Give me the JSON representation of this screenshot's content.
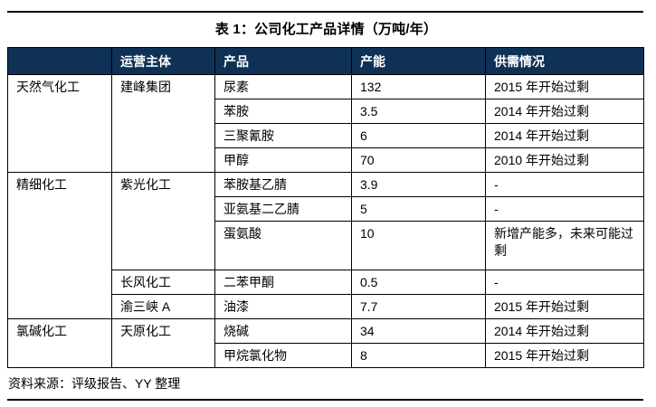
{
  "title": "表 1：公司化工产品详情（万吨/年）",
  "table": {
    "headers": [
      "",
      "运营主体",
      "产品",
      "产能",
      "供需情况"
    ],
    "rows": [
      {
        "category": {
          "text": "天然气化工",
          "rowspan": 4
        },
        "operator": {
          "text": "建峰集团",
          "rowspan": 4
        },
        "product": "尿素",
        "capacity": "132",
        "supply": "2015 年开始过剩"
      },
      {
        "product": "苯胺",
        "capacity": "3.5",
        "supply": "2014 年开始过剩"
      },
      {
        "product": "三聚氰胺",
        "capacity": "6",
        "supply": "2014 年开始过剩"
      },
      {
        "product": "甲醇",
        "capacity": "70",
        "supply": "2010 年开始过剩"
      },
      {
        "category": {
          "text": "精细化工",
          "rowspan": 5
        },
        "operator": {
          "text": "紫光化工",
          "rowspan": 3
        },
        "product": "苯胺基乙腈",
        "capacity": "3.9",
        "supply": "-"
      },
      {
        "product": "亚氨基二乙腈",
        "capacity": "5",
        "supply": "-"
      },
      {
        "product": "蛋氨酸",
        "capacity": "10",
        "supply": "新增产能多，未来可能过剩",
        "tall": true
      },
      {
        "operator": {
          "text": "长风化工",
          "rowspan": 1
        },
        "product": "二苯甲酮",
        "capacity": "0.5",
        "supply": "-"
      },
      {
        "operator": {
          "text": "渝三峡 A",
          "rowspan": 1
        },
        "product": "油漆",
        "capacity": "7.7",
        "supply": "2015 年开始过剩"
      },
      {
        "category": {
          "text": "氯碱化工",
          "rowspan": 2
        },
        "operator": {
          "text": "天原化工",
          "rowspan": 2
        },
        "product": "烧碱",
        "capacity": "34",
        "supply": "2014 年开始过剩"
      },
      {
        "product": "甲烷氯化物",
        "capacity": "8",
        "supply": "2015 年开始过剩"
      }
    ]
  },
  "footer": {
    "source": "资料来源：评级报告、YY 整理"
  },
  "colors": {
    "header_bg": "#0F3156",
    "header_text": "#FFFFFF",
    "border": "#000000"
  }
}
